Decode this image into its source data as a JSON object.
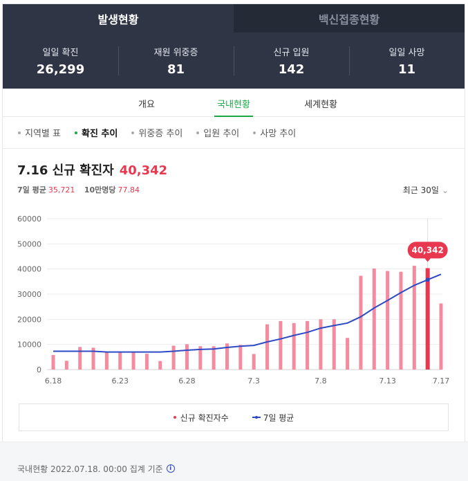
{
  "top_tabs": [
    {
      "label": "발생현황",
      "active": true
    },
    {
      "label": "백신접종현황",
      "active": false
    }
  ],
  "stats": [
    {
      "label": "일일 확진",
      "value": "26,299"
    },
    {
      "label": "재원 위중증",
      "value": "81"
    },
    {
      "label": "신규 입원",
      "value": "142"
    },
    {
      "label": "일일 사망",
      "value": "11"
    }
  ],
  "sub_tabs": [
    {
      "label": "개요",
      "active": false
    },
    {
      "label": "국내현황",
      "active": true
    },
    {
      "label": "세계현황",
      "active": false
    }
  ],
  "filters": [
    {
      "label": "지역별 표",
      "active": false
    },
    {
      "label": "확진 추이",
      "active": true
    },
    {
      "label": "위중증 추이",
      "active": false
    },
    {
      "label": "입원 추이",
      "active": false
    },
    {
      "label": "사망 추이",
      "active": false
    }
  ],
  "headline": {
    "title": "7.16 신규 확진자",
    "value": "40,342",
    "avg_label": "7일 평균",
    "avg_value": "35,721",
    "per100k_label": "10만명당",
    "per100k_value": "77.84"
  },
  "period": "최근 30일",
  "colors": {
    "bar": "#f48b9f",
    "bar_highlight": "#e8384f",
    "avg_line": "#2e49c6",
    "accent_green": "#1aa845"
  },
  "chart_data": {
    "type": "bar",
    "ylim": [
      0,
      60000
    ],
    "yticks": [
      0,
      10000,
      20000,
      30000,
      40000,
      50000,
      60000
    ],
    "xtick_labels": [
      {
        "index": 0,
        "label": "6.18"
      },
      {
        "index": 5,
        "label": "6.23"
      },
      {
        "index": 10,
        "label": "6.28"
      },
      {
        "index": 15,
        "label": "7.3"
      },
      {
        "index": 20,
        "label": "7.8"
      },
      {
        "index": 25,
        "label": "7.13"
      },
      {
        "index": 29,
        "label": "7.17"
      }
    ],
    "series": [
      {
        "name": "신규 확진자수",
        "type": "bar",
        "values": [
          5800,
          3500,
          9000,
          8700,
          7000,
          7000,
          6800,
          6300,
          3400,
          9500,
          10100,
          9300,
          9300,
          10400,
          9800,
          6200,
          18000,
          19300,
          18500,
          19300,
          20000,
          20000,
          12600,
          37300,
          40200,
          39200,
          38900,
          41300,
          40342,
          26299
        ]
      },
      {
        "name": "7일 평균",
        "type": "line",
        "values": [
          7300,
          7300,
          7300,
          7300,
          7000,
          7000,
          7000,
          7000,
          7000,
          7300,
          7700,
          8000,
          8200,
          8800,
          9300,
          9600,
          11000,
          12200,
          13600,
          14800,
          16500,
          17500,
          18500,
          21000,
          24500,
          27500,
          30600,
          33500,
          35721,
          37900
        ]
      }
    ],
    "highlight": {
      "index": 28,
      "label": "40,342"
    }
  },
  "legend": [
    {
      "label": "신규 확진자수"
    },
    {
      "label": "7일 평균"
    }
  ],
  "footer": {
    "text": "국내현황 2022.07.18. 00:00 집계 기준",
    "info_icon": "info-icon"
  }
}
